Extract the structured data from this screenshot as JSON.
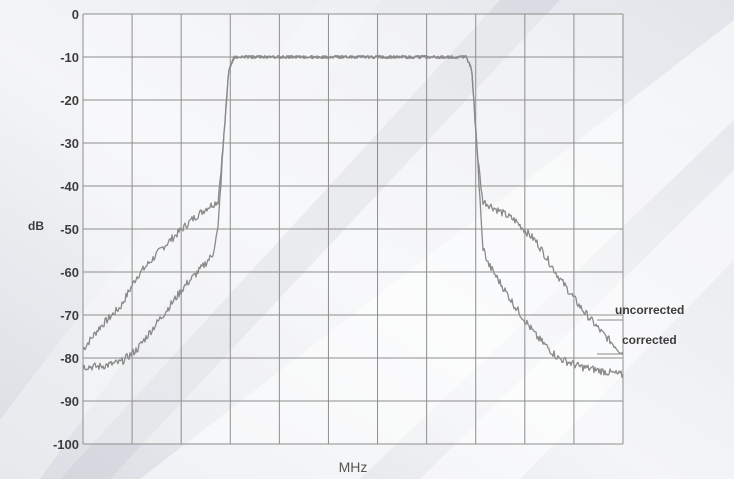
{
  "chart_data": {
    "type": "line",
    "xlabel": "MHz",
    "ylabel": "dB",
    "ylim": [
      -100,
      0
    ],
    "yticks": [
      "0",
      "-10",
      "-20",
      "-30",
      "-40",
      "-50",
      "-60",
      "-70",
      "-80",
      "-90",
      "-100"
    ],
    "x_tick_count": 12,
    "grid": true,
    "legend_position": "right",
    "colors": {
      "trace": "#8a8a8a",
      "grid": "#8e8e8e",
      "text": "#3d3d3d"
    },
    "series": [
      {
        "name": "uncorrected",
        "x": [
          0,
          0.03,
          0.07,
          0.1,
          0.15,
          0.2,
          0.23,
          0.25,
          0.26,
          0.27,
          0.28,
          0.3,
          0.35,
          0.4,
          0.5,
          0.6,
          0.65,
          0.69,
          0.71,
          0.72,
          0.73,
          0.74,
          0.76,
          0.8,
          0.84,
          0.88,
          0.92,
          0.96,
          1.0
        ],
        "y": [
          -78,
          -73,
          -68,
          -61,
          -54,
          -48,
          -45,
          -43.5,
          -30,
          -13,
          -10,
          -10,
          -10,
          -10,
          -10,
          -10,
          -10,
          -10,
          -10,
          -13,
          -32,
          -43.5,
          -45,
          -48,
          -53,
          -61,
          -68,
          -74,
          -79
        ]
      },
      {
        "name": "corrected",
        "x": [
          0,
          0.03,
          0.07,
          0.1,
          0.13,
          0.16,
          0.19,
          0.22,
          0.24,
          0.25,
          0.26,
          0.27,
          0.28,
          0.3,
          0.35,
          0.4,
          0.5,
          0.6,
          0.65,
          0.69,
          0.71,
          0.72,
          0.73,
          0.74,
          0.75,
          0.77,
          0.8,
          0.84,
          0.88,
          0.92,
          0.96,
          1.0
        ],
        "y": [
          -82,
          -82,
          -81,
          -78,
          -73,
          -68,
          -63,
          -59,
          -56,
          -50,
          -30,
          -13,
          -10,
          -10,
          -10,
          -10,
          -10,
          -10,
          -10,
          -10,
          -10,
          -13,
          -32,
          -54,
          -58,
          -62,
          -68,
          -75,
          -80,
          -82,
          -83,
          -84
        ]
      }
    ]
  }
}
